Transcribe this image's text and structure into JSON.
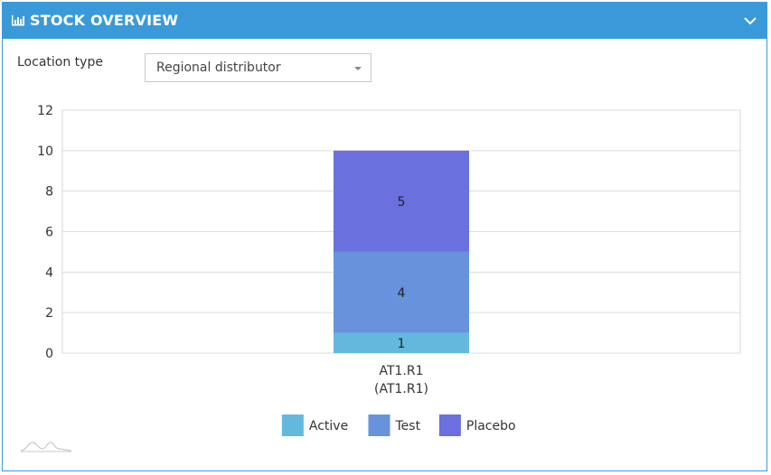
{
  "panel": {
    "title": "STOCK OVERVIEW",
    "title_icon": "bar-chart-icon",
    "collapse_icon": "chevron-down-icon",
    "header_color": "#3a9ad9"
  },
  "filter": {
    "label": "Location type",
    "selected": "Regional distributor"
  },
  "chart_data": {
    "type": "bar",
    "stacked": true,
    "categories": [
      [
        "AT1.R1",
        "(AT1.R1)"
      ]
    ],
    "series": [
      {
        "name": "Active",
        "values": [
          1
        ],
        "color": "#63b8dd"
      },
      {
        "name": "Test",
        "values": [
          4
        ],
        "color": "#6793dd"
      },
      {
        "name": "Placebo",
        "values": [
          5
        ],
        "color": "#6a70dd"
      }
    ],
    "ylim": [
      0,
      12
    ],
    "yticks": [
      0,
      2,
      4,
      6,
      8,
      10,
      12
    ],
    "grid": true,
    "legend": "bottom-center",
    "data_labels": true
  }
}
